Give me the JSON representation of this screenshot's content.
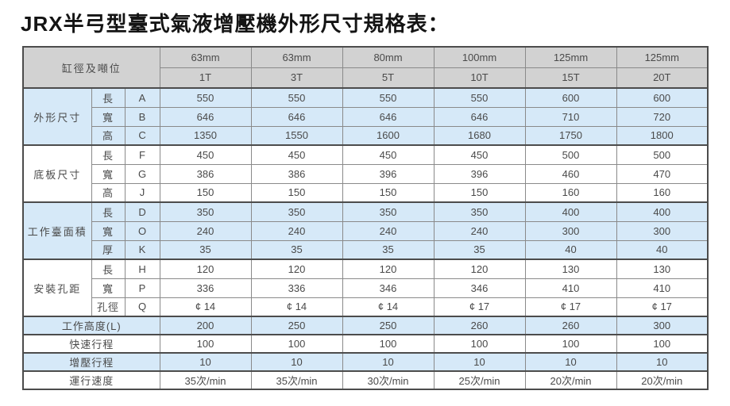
{
  "title": "JRX半弓型臺式氣液增壓機外形尺寸規格表：",
  "colors": {
    "header_bg": "#d2d2d2",
    "shaded_row_bg": "#d6e9f8",
    "grid_border": "#8a8a8a",
    "section_border": "#4c4c4c",
    "text": "#4a4a4a"
  },
  "table": {
    "corner_label": "缸徑及噸位",
    "columns": [
      {
        "bore": "63mm",
        "tonnage": "1T"
      },
      {
        "bore": "63mm",
        "tonnage": "3T"
      },
      {
        "bore": "80mm",
        "tonnage": "5T"
      },
      {
        "bore": "100mm",
        "tonnage": "10T"
      },
      {
        "bore": "125mm",
        "tonnage": "15T"
      },
      {
        "bore": "125mm",
        "tonnage": "20T"
      }
    ],
    "groups": [
      {
        "name": "外形尺寸",
        "shaded": true,
        "rows": [
          {
            "dim": "長",
            "code": "A",
            "values": [
              "550",
              "550",
              "550",
              "550",
              "600",
              "600"
            ]
          },
          {
            "dim": "寬",
            "code": "B",
            "values": [
              "646",
              "646",
              "646",
              "646",
              "710",
              "720"
            ]
          },
          {
            "dim": "高",
            "code": "C",
            "values": [
              "1350",
              "1550",
              "1600",
              "1680",
              "1750",
              "1800"
            ]
          }
        ]
      },
      {
        "name": "底板尺寸",
        "shaded": false,
        "rows": [
          {
            "dim": "長",
            "code": "F",
            "values": [
              "450",
              "450",
              "450",
              "450",
              "500",
              "500"
            ]
          },
          {
            "dim": "寬",
            "code": "G",
            "values": [
              "386",
              "386",
              "396",
              "396",
              "460",
              "470"
            ]
          },
          {
            "dim": "高",
            "code": "J",
            "values": [
              "150",
              "150",
              "150",
              "150",
              "160",
              "160"
            ]
          }
        ]
      },
      {
        "name": "工作臺面積",
        "shaded": true,
        "rows": [
          {
            "dim": "長",
            "code": "D",
            "values": [
              "350",
              "350",
              "350",
              "350",
              "400",
              "400"
            ]
          },
          {
            "dim": "寬",
            "code": "O",
            "values": [
              "240",
              "240",
              "240",
              "240",
              "300",
              "300"
            ]
          },
          {
            "dim": "厚",
            "code": "K",
            "values": [
              "35",
              "35",
              "35",
              "35",
              "40",
              "40"
            ]
          }
        ]
      },
      {
        "name": "安裝孔距",
        "shaded": false,
        "rows": [
          {
            "dim": "長",
            "code": "H",
            "values": [
              "120",
              "120",
              "120",
              "120",
              "130",
              "130"
            ]
          },
          {
            "dim": "寬",
            "code": "P",
            "values": [
              "336",
              "336",
              "346",
              "346",
              "410",
              "410"
            ]
          },
          {
            "dim": "孔徑",
            "code": "Q",
            "values": [
              "¢ 14",
              "¢ 14",
              "¢ 14",
              "¢ 17",
              "¢ 17",
              "¢ 17"
            ]
          }
        ]
      }
    ],
    "summary_rows": [
      {
        "label": "工作高度(L)",
        "shaded": true,
        "values": [
          "200",
          "250",
          "250",
          "260",
          "260",
          "300"
        ]
      },
      {
        "label": "快速行程",
        "shaded": false,
        "values": [
          "100",
          "100",
          "100",
          "100",
          "100",
          "100"
        ]
      },
      {
        "label": "增壓行程",
        "shaded": true,
        "values": [
          "10",
          "10",
          "10",
          "10",
          "10",
          "10"
        ]
      },
      {
        "label": "運行速度",
        "shaded": false,
        "values": [
          "35次/min",
          "35次/min",
          "30次/min",
          "25次/min",
          "20次/min",
          "20次/min"
        ]
      }
    ]
  }
}
